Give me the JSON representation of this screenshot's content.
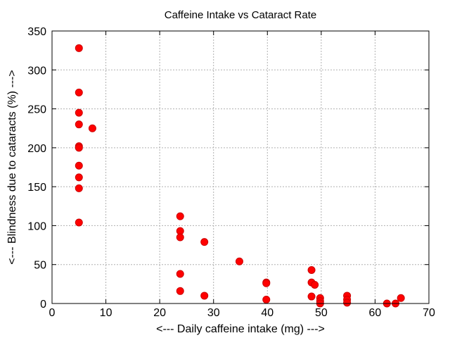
{
  "chart_data": {
    "type": "scatter",
    "title": "Caffeine Intake vs Cataract Rate",
    "xlabel": "<--- Daily caffeine intake (mg) --->",
    "ylabel": "<--- Blindness due to cataracts (%) --->",
    "xlim": [
      0,
      70
    ],
    "ylim": [
      0,
      350
    ],
    "xticks": [
      0,
      10,
      20,
      30,
      40,
      50,
      60,
      70
    ],
    "yticks": [
      0,
      50,
      100,
      150,
      200,
      250,
      300,
      350
    ],
    "grid": true,
    "marker_color": "#ff0000",
    "marker_stroke": "#cc0000",
    "series": [
      {
        "points": [
          [
            5,
            328
          ],
          [
            5,
            271
          ],
          [
            5,
            245
          ],
          [
            5,
            230
          ],
          [
            5,
            202
          ],
          [
            5,
            200
          ],
          [
            5,
            177
          ],
          [
            5,
            162
          ],
          [
            5,
            148
          ],
          [
            5,
            104
          ],
          [
            7.5,
            225
          ],
          [
            23.8,
            112
          ],
          [
            23.8,
            93
          ],
          [
            23.8,
            85
          ],
          [
            23.8,
            38
          ],
          [
            23.8,
            16
          ],
          [
            28.3,
            79
          ],
          [
            28.3,
            10
          ],
          [
            34.8,
            54
          ],
          [
            39.8,
            27
          ],
          [
            39.8,
            26
          ],
          [
            39.8,
            5
          ],
          [
            48.2,
            43
          ],
          [
            48.2,
            27
          ],
          [
            48.8,
            24
          ],
          [
            48.2,
            9
          ],
          [
            49.8,
            7
          ],
          [
            49.8,
            3
          ],
          [
            49.8,
            0
          ],
          [
            54.8,
            10
          ],
          [
            54.8,
            5
          ],
          [
            54.8,
            1
          ],
          [
            62.2,
            0
          ],
          [
            63.8,
            0
          ],
          [
            64.8,
            7
          ]
        ]
      }
    ]
  }
}
